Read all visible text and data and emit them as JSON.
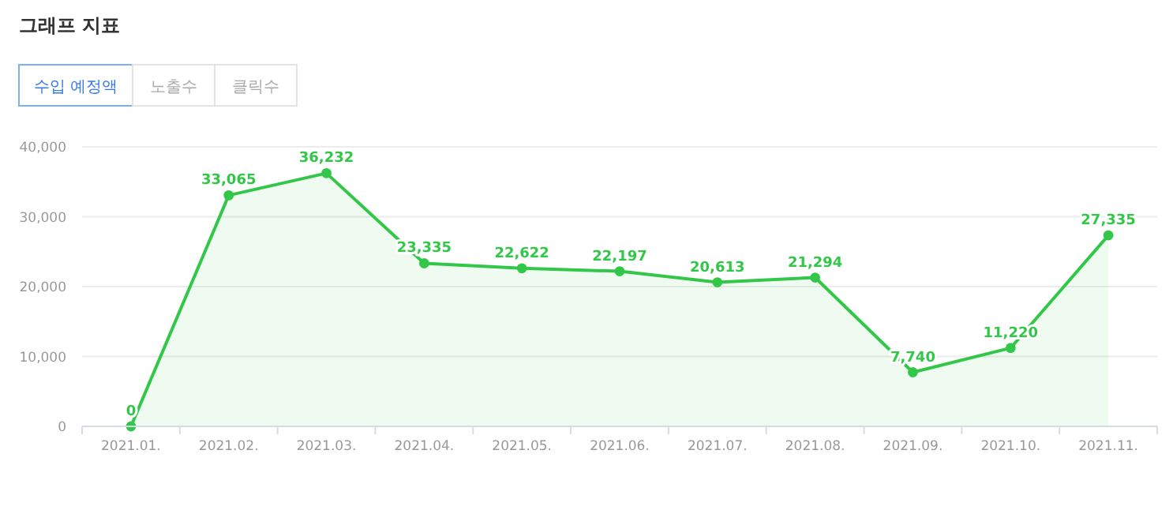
{
  "chart_data": {
    "type": "area",
    "title": "그래프 지표",
    "annotations": [
      "수입 예정액",
      "노출수",
      "클릭수"
    ],
    "categories": [
      "2021.01.",
      "2021.02.",
      "2021.03.",
      "2021.04.",
      "2021.05.",
      "2021.06.",
      "2021.07.",
      "2021.08.",
      "2021.09.",
      "2021.10.",
      "2021.11."
    ],
    "series": [
      {
        "color": "#33c74a",
        "values": [
          0,
          33065,
          36232,
          23335,
          22622,
          22197,
          20613,
          21294,
          7740,
          11220,
          27335
        ],
        "value_labels": [
          "0",
          "33,065",
          "36,232",
          "23,335",
          "22,622",
          "22,197",
          "20,613",
          "21,294",
          "7,740",
          "11,220",
          "27,335"
        ]
      }
    ],
    "ylim": [
      0,
      40000
    ],
    "yticks": [
      {
        "value": 0,
        "label": "0"
      },
      {
        "value": 10000,
        "label": "10,000"
      },
      {
        "value": 20000,
        "label": "20,000"
      },
      {
        "value": 30000,
        "label": "30,000"
      },
      {
        "value": 40000,
        "label": "40,000"
      }
    ],
    "grid": "y",
    "marker": "circle"
  }
}
